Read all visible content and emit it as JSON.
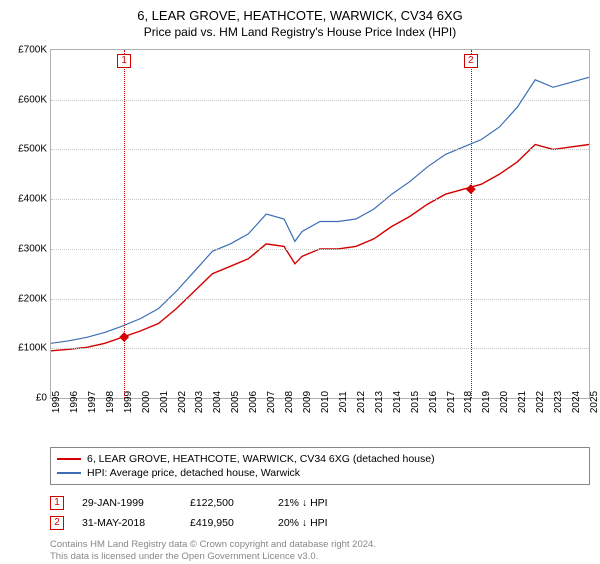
{
  "title": {
    "main": "6, LEAR GROVE, HEATHCOTE, WARWICK, CV34 6XG",
    "sub": "Price paid vs. HM Land Registry's House Price Index (HPI)"
  },
  "chart": {
    "type": "line",
    "background_color": "#ffffff",
    "grid_color": "#c8c8c8",
    "border_color": "#b0b0b0",
    "xlim": [
      1995,
      2025
    ],
    "ylim": [
      0,
      700000
    ],
    "ytick_step": 100000,
    "ytick_labels": [
      "£0",
      "£100K",
      "£200K",
      "£300K",
      "£400K",
      "£500K",
      "£600K",
      "£700K"
    ],
    "xtick_step": 1,
    "xtick_labels": [
      "1995",
      "1996",
      "1997",
      "1998",
      "1999",
      "2000",
      "2001",
      "2002",
      "2003",
      "2004",
      "2005",
      "2006",
      "2007",
      "2008",
      "2009",
      "2010",
      "2011",
      "2012",
      "2013",
      "2014",
      "2015",
      "2016",
      "2017",
      "2018",
      "2019",
      "2020",
      "2021",
      "2022",
      "2023",
      "2024",
      "2025"
    ],
    "label_fontsize": 10,
    "series": [
      {
        "name": "price_paid",
        "color": "#d40000",
        "width": 1.4,
        "x": [
          1995,
          1996,
          1997,
          1998,
          1999,
          2000,
          2001,
          2002,
          2003,
          2004,
          2005,
          2006,
          2007,
          2008,
          2008.6,
          2009,
          2010,
          2011,
          2012,
          2013,
          2014,
          2015,
          2016,
          2017,
          2018,
          2019,
          2020,
          2021,
          2022,
          2023,
          2024,
          2025
        ],
        "y": [
          95000,
          98000,
          102000,
          110000,
          122500,
          135000,
          150000,
          180000,
          215000,
          250000,
          265000,
          280000,
          310000,
          305000,
          270000,
          285000,
          300000,
          300000,
          305000,
          320000,
          345000,
          365000,
          390000,
          410000,
          419950,
          430000,
          450000,
          475000,
          510000,
          500000,
          505000,
          510000
        ]
      },
      {
        "name": "hpi",
        "color": "#3a6fb7",
        "width": 1.2,
        "x": [
          1995,
          1996,
          1997,
          1998,
          1999,
          2000,
          2001,
          2002,
          2003,
          2004,
          2005,
          2006,
          2007,
          2008,
          2008.6,
          2009,
          2010,
          2011,
          2012,
          2013,
          2014,
          2015,
          2016,
          2017,
          2018,
          2019,
          2020,
          2021,
          2022,
          2023,
          2024,
          2025
        ],
        "y": [
          110000,
          115000,
          122000,
          132000,
          145000,
          160000,
          180000,
          215000,
          255000,
          295000,
          310000,
          330000,
          370000,
          360000,
          315000,
          335000,
          355000,
          355000,
          360000,
          380000,
          410000,
          435000,
          465000,
          490000,
          505000,
          520000,
          545000,
          585000,
          640000,
          625000,
          635000,
          645000
        ]
      }
    ],
    "sale_markers": [
      {
        "label": "1",
        "x": 1999.08,
        "y": 122500,
        "color": "#d40000"
      },
      {
        "label": "2",
        "x": 2018.41,
        "y": 419950,
        "color": "#d40000"
      }
    ]
  },
  "legend": {
    "items": [
      {
        "color": "#d40000",
        "text": "6, LEAR GROVE, HEATHCOTE, WARWICK, CV34 6XG (detached house)"
      },
      {
        "color": "#3a6fb7",
        "text": "HPI: Average price, detached house, Warwick"
      }
    ]
  },
  "events": [
    {
      "label": "1",
      "color": "#d40000",
      "date": "29-JAN-1999",
      "price": "£122,500",
      "delta": "21% ↓ HPI"
    },
    {
      "label": "2",
      "color": "#d40000",
      "date": "31-MAY-2018",
      "price": "£419,950",
      "delta": "20% ↓ HPI"
    }
  ],
  "footer": {
    "line1": "Contains HM Land Registry data © Crown copyright and database right 2024.",
    "line2": "This data is licensed under the Open Government Licence v3.0."
  }
}
